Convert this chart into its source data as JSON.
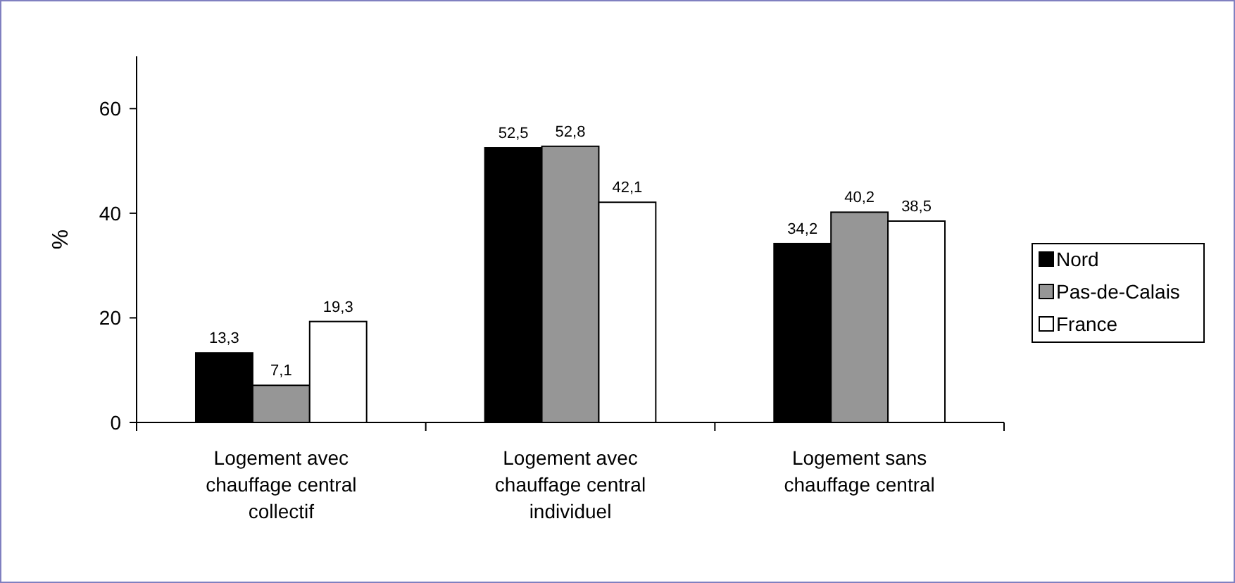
{
  "chart_data": {
    "type": "bar",
    "ylabel": "%",
    "categories": [
      "Logement avec chauffage central collectif",
      "Logement avec chauffage central individuel",
      "Logement sans chauffage central"
    ],
    "series": [
      {
        "name": "Nord",
        "color": "#000000",
        "values": [
          13.3,
          52.5,
          34.2
        ],
        "value_labels": [
          "13,3",
          "52,5",
          "34,2"
        ]
      },
      {
        "name": "Pas-de-Calais",
        "color": "#969696",
        "values": [
          7.1,
          52.8,
          40.2
        ],
        "value_labels": [
          "7,1",
          "52,8",
          "40,2"
        ]
      },
      {
        "name": "France",
        "color": "#ffffff",
        "values": [
          19.3,
          42.1,
          38.5
        ],
        "value_labels": [
          "19,3",
          "42,1",
          "38,5"
        ]
      }
    ],
    "ylim": [
      0,
      70
    ],
    "yticks": [
      0,
      20,
      40,
      60
    ],
    "grid": false,
    "legend": "right"
  }
}
